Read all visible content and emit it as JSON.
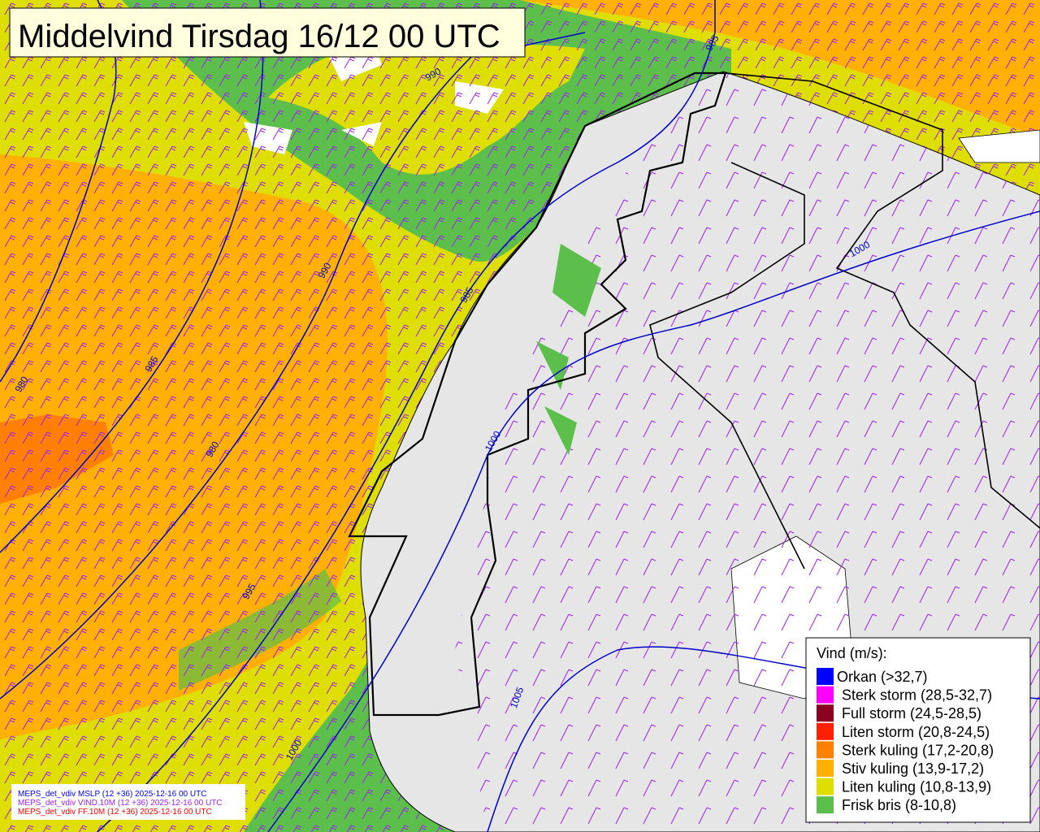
{
  "title": "Middelvind Tirsdag 16/12 00 UTC",
  "legend": {
    "title": "Vind (m/s):",
    "items": [
      {
        "label": "Orkan (>32,7)",
        "color": "#0000ff"
      },
      {
        "label": "Sterk storm (28,5-32,7)",
        "color": "#ff00ff"
      },
      {
        "label": "Full storm (24,5-28,5)",
        "color": "#8b0020"
      },
      {
        "label": "Liten storm (20,8-24,5)",
        "color": "#ff2000"
      },
      {
        "label": "Sterk kuling (17,2-20,8)",
        "color": "#ff8000"
      },
      {
        "label": "Stiv kuling (13,9-17,2)",
        "color": "#ffb000"
      },
      {
        "label": "Liten kuling (10,8-13,9)",
        "color": "#dede00"
      },
      {
        "label": "Frisk bris (8-10,8)",
        "color": "#5cbf4c"
      }
    ]
  },
  "isobar_labels": [
    "990",
    "985",
    "990",
    "985",
    "985",
    "980",
    "980",
    "1000",
    "995",
    "1000",
    "1005",
    "1000"
  ],
  "footnotes": [
    {
      "text": "MEPS_det_vdiv MSLP (12 +36) 2025-12-16 00 UTC",
      "color": "#0000ff"
    },
    {
      "text": "MEPS_det_vdiv VIND.10M (12 +36) 2025-12-16 00 UTC",
      "color": "#a020f0"
    },
    {
      "text": "MEPS_det_vdiv FF.10M (12 +36) 2025-12-16 00 UTC",
      "color": "#ff0000"
    }
  ]
}
